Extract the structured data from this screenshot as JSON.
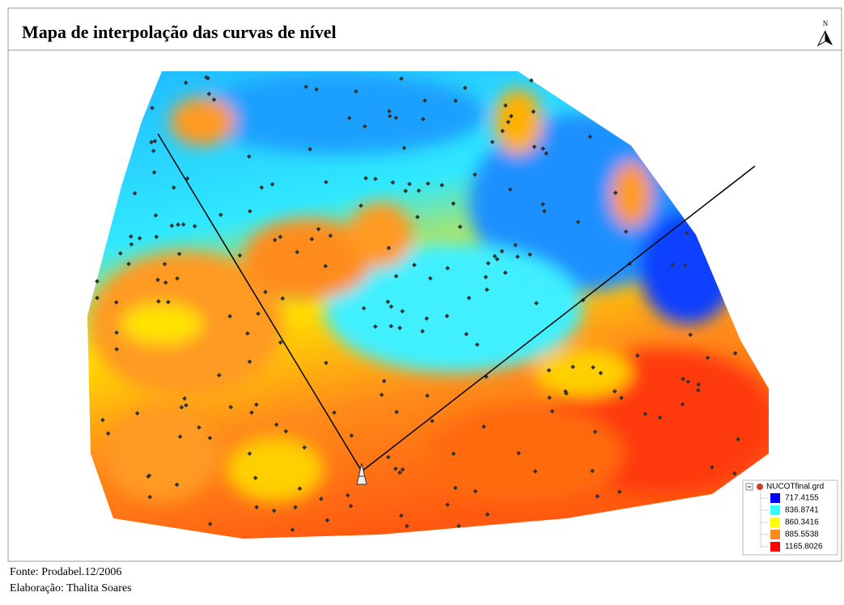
{
  "header": {
    "title": "Mapa de interpolação das curvas de nível",
    "north": "N"
  },
  "legend": {
    "title": "NUCOTfinal.grd",
    "items": [
      {
        "label": "717.4155",
        "color": "#0000ff"
      },
      {
        "label": "836.8741",
        "color": "#33ffff"
      },
      {
        "label": "860.3416",
        "color": "#ffff00"
      },
      {
        "label": "885.5538",
        "color": "#ff8c1a"
      },
      {
        "label": "1165.8026",
        "color": "#ff0000"
      }
    ]
  },
  "footer": {
    "source": "Fonte: Prodabel.12/2006",
    "author": "Elaboração: Thalita Soares"
  }
}
